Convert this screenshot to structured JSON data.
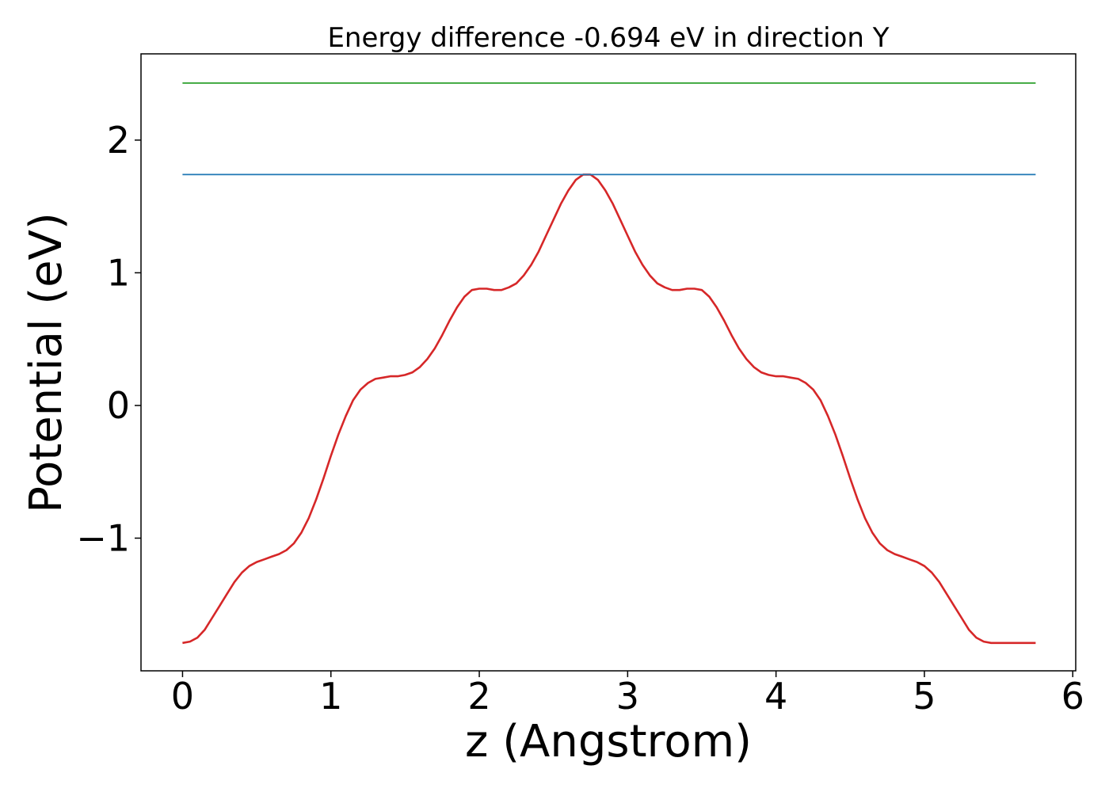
{
  "chart_data": {
    "type": "line",
    "title": "Energy difference -0.694 eV in direction Y",
    "xlabel": "z (Angstrom)",
    "ylabel": "Potential (eV)",
    "xlim": [
      -0.28,
      6.02
    ],
    "ylim": [
      -2.0,
      2.65
    ],
    "xticks": [
      0,
      1,
      2,
      3,
      4,
      5,
      6
    ],
    "xtick_labels": [
      "0",
      "1",
      "2",
      "3",
      "4",
      "5",
      "6"
    ],
    "yticks": [
      -1,
      0,
      1,
      2
    ],
    "ytick_labels": [
      "−1",
      "0",
      "1",
      "2"
    ],
    "grid": false,
    "legend": "none",
    "series": [
      {
        "color": "#d62728",
        "x": [
          0.0,
          0.05,
          0.1,
          0.15,
          0.2,
          0.25,
          0.3,
          0.35,
          0.4,
          0.45,
          0.5,
          0.55,
          0.6,
          0.65,
          0.7,
          0.75,
          0.8,
          0.85,
          0.9,
          0.95,
          1.0,
          1.05,
          1.1,
          1.15,
          1.2,
          1.25,
          1.3,
          1.35,
          1.4,
          1.45,
          1.5,
          1.55,
          1.6,
          1.65,
          1.7,
          1.75,
          1.8,
          1.85,
          1.9,
          1.95,
          2.0,
          2.05,
          2.1,
          2.15,
          2.2,
          2.25,
          2.3,
          2.35,
          2.4,
          2.45,
          2.5,
          2.55,
          2.6,
          2.65,
          2.7,
          2.75,
          2.8,
          2.85,
          2.9,
          2.95,
          3.0,
          3.05,
          3.1,
          3.15,
          3.2,
          3.25,
          3.3,
          3.35,
          3.4,
          3.45,
          3.5,
          3.55,
          3.6,
          3.65,
          3.7,
          3.75,
          3.8,
          3.85,
          3.9,
          3.95,
          4.0,
          4.05,
          4.1,
          4.15,
          4.2,
          4.25,
          4.3,
          4.35,
          4.4,
          4.45,
          4.5,
          4.55,
          4.6,
          4.65,
          4.7,
          4.75,
          4.8,
          4.85,
          4.9,
          4.95,
          5.0,
          5.05,
          5.1,
          5.15,
          5.2,
          5.25,
          5.3,
          5.35,
          5.4,
          5.45,
          5.5,
          5.55,
          5.6,
          5.65,
          5.7,
          5.75
        ],
        "values": [
          -1.79,
          -1.78,
          -1.75,
          -1.69,
          -1.6,
          -1.51,
          -1.42,
          -1.33,
          -1.26,
          -1.21,
          -1.18,
          -1.16,
          -1.14,
          -1.12,
          -1.09,
          -1.04,
          -0.96,
          -0.85,
          -0.71,
          -0.55,
          -0.38,
          -0.22,
          -0.08,
          0.04,
          0.12,
          0.17,
          0.2,
          0.21,
          0.22,
          0.22,
          0.23,
          0.25,
          0.29,
          0.35,
          0.43,
          0.53,
          0.64,
          0.74,
          0.82,
          0.87,
          0.88,
          0.88,
          0.87,
          0.87,
          0.89,
          0.92,
          0.98,
          1.06,
          1.16,
          1.28,
          1.4,
          1.52,
          1.62,
          1.7,
          1.74,
          1.74,
          1.7,
          1.62,
          1.52,
          1.4,
          1.28,
          1.16,
          1.06,
          0.98,
          0.92,
          0.89,
          0.87,
          0.87,
          0.88,
          0.88,
          0.87,
          0.82,
          0.74,
          0.64,
          0.53,
          0.43,
          0.35,
          0.29,
          0.25,
          0.23,
          0.22,
          0.22,
          0.21,
          0.2,
          0.17,
          0.12,
          0.04,
          -0.08,
          -0.22,
          -0.38,
          -0.55,
          -0.71,
          -0.85,
          -0.96,
          -1.04,
          -1.09,
          -1.12,
          -1.14,
          -1.16,
          -1.18,
          -1.21,
          -1.26,
          -1.33,
          -1.42,
          -1.51,
          -1.6,
          -1.69,
          -1.75,
          -1.78,
          -1.79,
          -1.79,
          -1.79,
          -1.79,
          -1.79,
          -1.79,
          -1.79
        ]
      },
      {
        "color": "#1f77b4",
        "x": [
          0.0,
          5.75
        ],
        "values": [
          1.74,
          1.74
        ]
      },
      {
        "color": "#2ca02c",
        "x": [
          0.0,
          5.75
        ],
        "values": [
          2.43,
          2.43
        ]
      }
    ]
  }
}
